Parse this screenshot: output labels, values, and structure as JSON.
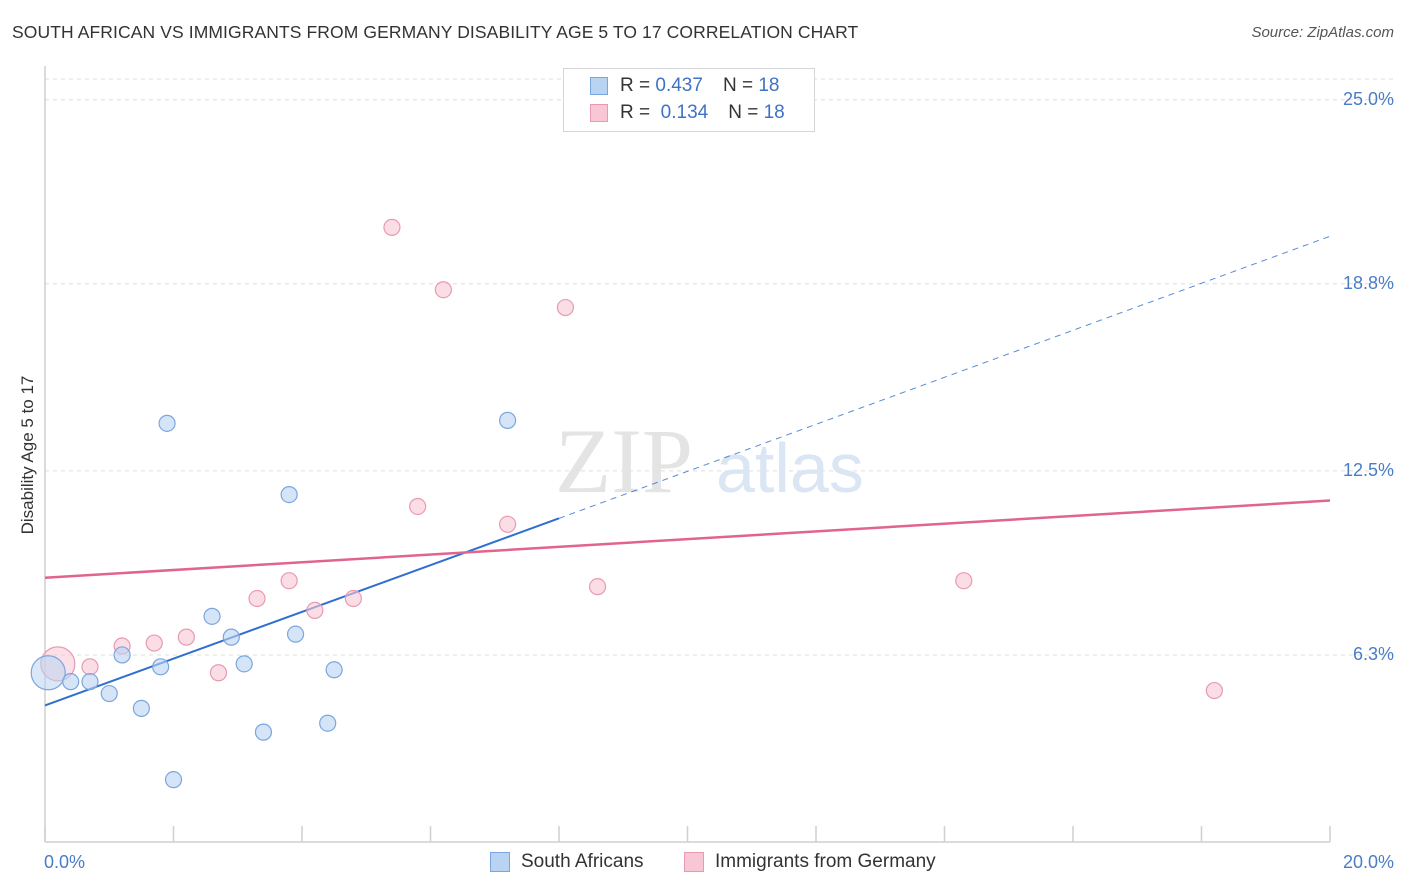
{
  "title": "SOUTH AFRICAN VS IMMIGRANTS FROM GERMANY DISABILITY AGE 5 TO 17 CORRELATION CHART",
  "source": "Source: ZipAtlas.com",
  "watermark": {
    "zip": "ZIP",
    "atlas": "atlas"
  },
  "legend": {
    "r_label": "R =",
    "n_label": "N =",
    "rows": [
      {
        "r": "0.437",
        "n": "18"
      },
      {
        "r": "0.134",
        "n": "18"
      }
    ]
  },
  "colors": {
    "blue_fill": "#b9d3f2",
    "blue_stroke": "#7aa6de",
    "blue_line": "#2f6fd0",
    "pink_fill": "#f8c6d4",
    "pink_stroke": "#e89ab2",
    "pink_line": "#e0648c",
    "tick_text": "#4a7cc7",
    "grid": "#dddddd"
  },
  "chart_data": {
    "type": "scatter",
    "title": "SOUTH AFRICAN VS IMMIGRANTS FROM GERMANY DISABILITY AGE 5 TO 17 CORRELATION CHART",
    "xlabel": "",
    "ylabel": "Disability Age 5 to 17",
    "xlim": [
      0,
      20
    ],
    "ylim": [
      0,
      26
    ],
    "x_tick_labels": [
      "0.0%",
      "20.0%"
    ],
    "y_ticks": [
      6.3,
      12.5,
      18.8,
      25.0
    ],
    "y_tick_labels": [
      "6.3%",
      "12.5%",
      "18.8%",
      "25.0%"
    ],
    "grid": true,
    "legend_position": "bottom",
    "series": [
      {
        "name": "South Africans",
        "points": [
          [
            0.05,
            5.7
          ],
          [
            0.4,
            5.4
          ],
          [
            0.7,
            5.4
          ],
          [
            1.0,
            5.0
          ],
          [
            1.2,
            6.3
          ],
          [
            1.5,
            4.5
          ],
          [
            1.8,
            5.9
          ],
          [
            2.0,
            2.1
          ],
          [
            2.6,
            7.6
          ],
          [
            2.9,
            6.9
          ],
          [
            3.1,
            6.0
          ],
          [
            3.4,
            3.7
          ],
          [
            3.8,
            11.7
          ],
          [
            3.9,
            7.0
          ],
          [
            4.4,
            4.0
          ],
          [
            4.5,
            5.8
          ],
          [
            1.9,
            14.1
          ],
          [
            7.2,
            14.2
          ]
        ],
        "trend": {
          "x0": 0,
          "y0": 4.6,
          "x1": 8.0,
          "y1": 10.9,
          "dashed_to_x": 20.0,
          "dashed_to_y": 20.4
        },
        "big_point_index": 0
      },
      {
        "name": "Immigrants from Germany",
        "points": [
          [
            0.2,
            6.0
          ],
          [
            0.7,
            5.9
          ],
          [
            1.2,
            6.6
          ],
          [
            1.7,
            6.7
          ],
          [
            2.2,
            6.9
          ],
          [
            2.7,
            5.7
          ],
          [
            3.3,
            8.2
          ],
          [
            3.8,
            8.8
          ],
          [
            4.2,
            7.8
          ],
          [
            4.8,
            8.2
          ],
          [
            5.4,
            20.7
          ],
          [
            5.8,
            11.3
          ],
          [
            6.2,
            18.6
          ],
          [
            7.2,
            10.7
          ],
          [
            8.1,
            18.0
          ],
          [
            8.6,
            8.6
          ],
          [
            14.3,
            8.8
          ],
          [
            18.2,
            5.1
          ]
        ],
        "trend": {
          "x0": 0,
          "y0": 8.9,
          "x1": 20.0,
          "y1": 11.5
        },
        "big_point_index": 0
      }
    ]
  }
}
